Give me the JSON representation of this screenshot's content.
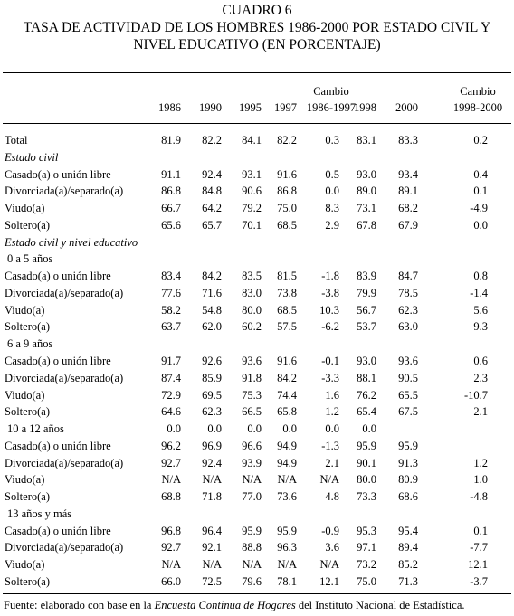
{
  "title": [
    "CUADRO 6",
    "TASA DE ACTIVIDAD DE LOS HOMBRES 1986-2000 POR ESTADO CIVIL Y",
    "NIVEL EDUCATIVO (EN PORCENTAJE)"
  ],
  "table": {
    "columns": [
      [
        "1986"
      ],
      [
        "1990"
      ],
      [
        "1995"
      ],
      [
        "1997"
      ],
      [
        "Cambio",
        "1986-1997"
      ],
      [
        "1998"
      ],
      [
        "2000"
      ],
      [
        "Cambio",
        "1998-2000"
      ]
    ],
    "rows": [
      {
        "label": "Total",
        "cells": [
          "81.9",
          "82.2",
          "84.1",
          "82.2",
          "0.3",
          "83.1",
          "83.3",
          "0.2"
        ]
      },
      {
        "label": "Estado civil",
        "style": "italic"
      },
      {
        "label": "Casado(a) o unión libre",
        "cells": [
          "91.1",
          "92.4",
          "93.1",
          "91.6",
          "0.5",
          "93.0",
          "93.4",
          "0.4"
        ]
      },
      {
        "label": "Divorciada(a)/separado(a)",
        "cells": [
          "86.8",
          "84.8",
          "90.6",
          "86.8",
          "0.0",
          "89.0",
          "89.1",
          "0.1"
        ]
      },
      {
        "label": "Viudo(a)",
        "cells": [
          "66.7",
          "64.2",
          "79.2",
          "75.0",
          "8.3",
          "73.1",
          "68.2",
          "-4.9"
        ]
      },
      {
        "label": "Soltero(a)",
        "cells": [
          "65.6",
          "65.7",
          "70.1",
          "68.5",
          "2.9",
          "67.8",
          "67.9",
          "0.0"
        ]
      },
      {
        "label": "Estado civil y nivel educativo",
        "style": "italic"
      },
      {
        "label": "0 a 5 años",
        "style": "indent"
      },
      {
        "label": "Casado(a) o unión libre",
        "cells": [
          "83.4",
          "84.2",
          "83.5",
          "81.5",
          "-1.8",
          "83.9",
          "84.7",
          "0.8"
        ]
      },
      {
        "label": "Divorciada(a)/separado(a)",
        "cells": [
          "77.6",
          "71.6",
          "83.0",
          "73.8",
          "-3.8",
          "79.9",
          "78.5",
          "-1.4"
        ]
      },
      {
        "label": "Viudo(a)",
        "cells": [
          "58.2",
          "54.8",
          "80.0",
          "68.5",
          "10.3",
          "56.7",
          "62.3",
          "5.6"
        ]
      },
      {
        "label": "Soltero(a)",
        "cells": [
          "63.7",
          "62.0",
          "60.2",
          "57.5",
          "-6.2",
          "53.7",
          "63.0",
          "9.3"
        ]
      },
      {
        "label": "6 a 9 años",
        "style": "indent"
      },
      {
        "label": "Casado(a) o unión libre",
        "cells": [
          "91.7",
          "92.6",
          "93.6",
          "91.6",
          "-0.1",
          "93.0",
          "93.6",
          "0.6"
        ]
      },
      {
        "label": "Divorciada(a)/separado(a)",
        "cells": [
          "87.4",
          "85.9",
          "91.8",
          "84.2",
          "-3.3",
          "88.1",
          "90.5",
          "2.3"
        ]
      },
      {
        "label": "Viudo(a)",
        "cells": [
          "72.9",
          "69.5",
          "75.3",
          "74.4",
          "1.6",
          "76.2",
          "65.5",
          "-10.7"
        ]
      },
      {
        "label": "Soltero(a)",
        "cells": [
          "64.6",
          "62.3",
          "66.5",
          "65.8",
          "1.2",
          "65.4",
          "67.5",
          "2.1"
        ]
      },
      {
        "label": "10 a 12 años",
        "style": "indent",
        "cells": [
          "0.0",
          "0.0",
          "0.0",
          "0.0",
          "0.0",
          "0.0",
          null,
          null
        ]
      },
      {
        "label": "Casado(a) o unión libre",
        "cells": [
          "96.2",
          "96.9",
          "96.6",
          "94.9",
          "-1.3",
          "95.9",
          "95.9",
          null
        ]
      },
      {
        "label": "Divorciada(a)/separado(a)",
        "cells": [
          "92.7",
          "92.4",
          "93.9",
          "94.9",
          "2.1",
          "90.1",
          "91.3",
          "1.2"
        ]
      },
      {
        "label": "Viudo(a)",
        "cells": [
          "N/A",
          "N/A",
          "N/A",
          "N/A",
          "N/A",
          "80.0",
          "80.9",
          "1.0"
        ]
      },
      {
        "label": "Soltero(a)",
        "cells": [
          "68.8",
          "71.8",
          "77.0",
          "73.6",
          "4.8",
          "73.3",
          "68.6",
          "-4.8"
        ]
      },
      {
        "label": "13 años y más",
        "style": "indent"
      },
      {
        "label": "Casado(a) o unión libre",
        "cells": [
          "96.8",
          "96.4",
          "95.9",
          "95.9",
          "-0.9",
          "95.3",
          "95.4",
          "0.1"
        ]
      },
      {
        "label": "Divorciada(a)/separado(a)",
        "cells": [
          "92.7",
          "92.1",
          "88.8",
          "96.3",
          "3.6",
          "97.1",
          "89.4",
          "-7.7"
        ]
      },
      {
        "label": "Viudo(a)",
        "cells": [
          "N/A",
          "N/A",
          "N/A",
          "N/A",
          "N/A",
          "73.2",
          "85.2",
          "12.1"
        ]
      },
      {
        "label": "Soltero(a)",
        "cells": [
          "66.0",
          "72.5",
          "79.6",
          "78.1",
          "12.1",
          "75.0",
          "71.3",
          "-3.7"
        ]
      }
    ]
  },
  "footnote": {
    "before": "Fuente: elaborado con base en la ",
    "emphasis": "Encuesta Continua de Hogares",
    "after": " del Instituto Nacional de Estadística."
  }
}
